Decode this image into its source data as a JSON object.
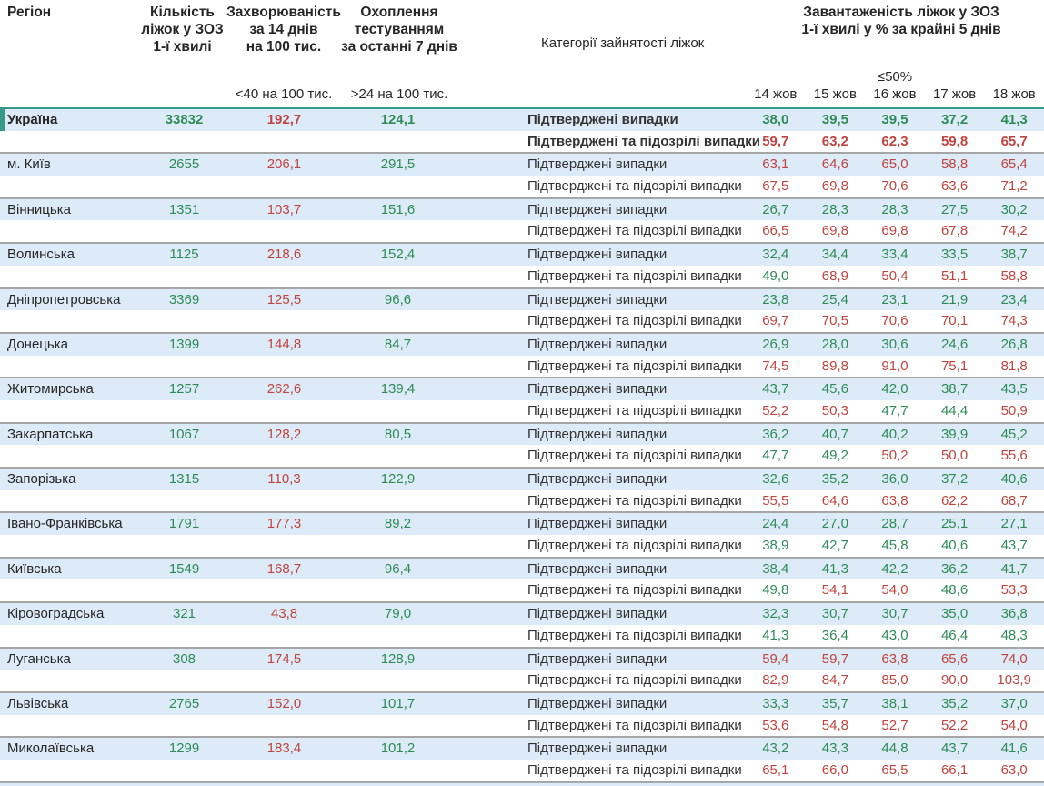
{
  "colors": {
    "green": "#2e8b57",
    "red": "#c0443f",
    "row_blue": "#dcebf7",
    "separator": "#a6a6a6",
    "teal_accent": "#37998a"
  },
  "chart_data": {
    "type": "table",
    "header": {
      "region": "Регіон",
      "beds": [
        "Кількість",
        "ліжок у ЗОЗ",
        "1-ї хвилі"
      ],
      "incidence": [
        "Захворюваність",
        "за 14 днів",
        "на 100 тис."
      ],
      "testing": [
        "Охоплення",
        "тестуванням",
        "за останні 7 днів"
      ],
      "categories": "Категорії зайнятості ліжок",
      "load": [
        "Завантаженість ліжок у ЗОЗ",
        "1-ї хвилі у % за крайні 5 днів"
      ],
      "incidence_threshold": "<40 на 100 тис.",
      "testing_threshold": ">24 на 100 тис.",
      "load_threshold": "≤50%",
      "dates": [
        "14 жов",
        "15 жов",
        "16 жов",
        "17 жов",
        "18 жов"
      ]
    },
    "row_labels": {
      "confirmed": "Підтверджені випадки",
      "confirmed_suspected": "Підтверджені та підозрілі випадки"
    },
    "thresholds": {
      "incidence_green_below": 40,
      "testing_green_above": 24,
      "occupancy_green_below": 50
    },
    "regions": [
      {
        "name": "Україна",
        "beds": "33832",
        "incidence": "192,7",
        "testing": "124,1",
        "confirmed": [
          "38,0",
          "39,5",
          "39,5",
          "37,2",
          "41,3"
        ],
        "confirmed_suspected": [
          "59,7",
          "63,2",
          "62,3",
          "59,8",
          "65,7"
        ]
      },
      {
        "name": "м. Київ",
        "beds": "2655",
        "incidence": "206,1",
        "testing": "291,5",
        "confirmed": [
          "63,1",
          "64,6",
          "65,0",
          "58,8",
          "65,4"
        ],
        "confirmed_suspected": [
          "67,5",
          "69,8",
          "70,6",
          "63,6",
          "71,2"
        ]
      },
      {
        "name": "Вінницька",
        "beds": "1351",
        "incidence": "103,7",
        "testing": "151,6",
        "confirmed": [
          "26,7",
          "28,3",
          "28,3",
          "27,5",
          "30,2"
        ],
        "confirmed_suspected": [
          "66,5",
          "69,8",
          "69,8",
          "67,8",
          "74,2"
        ]
      },
      {
        "name": "Волинська",
        "beds": "1125",
        "incidence": "218,6",
        "testing": "152,4",
        "confirmed": [
          "32,4",
          "34,4",
          "33,4",
          "33,5",
          "38,7"
        ],
        "confirmed_suspected": [
          "49,0",
          "68,9",
          "50,4",
          "51,1",
          "58,8"
        ]
      },
      {
        "name": "Дніпропетровська",
        "beds": "3369",
        "incidence": "125,5",
        "testing": "96,6",
        "confirmed": [
          "23,8",
          "25,4",
          "23,1",
          "21,9",
          "23,4"
        ],
        "confirmed_suspected": [
          "69,7",
          "70,5",
          "70,6",
          "70,1",
          "74,3"
        ]
      },
      {
        "name": "Донецька",
        "beds": "1399",
        "incidence": "144,8",
        "testing": "84,7",
        "confirmed": [
          "26,9",
          "28,0",
          "30,6",
          "24,6",
          "26,8"
        ],
        "confirmed_suspected": [
          "74,5",
          "89,8",
          "91,0",
          "75,1",
          "81,8"
        ]
      },
      {
        "name": "Житомирська",
        "beds": "1257",
        "incidence": "262,6",
        "testing": "139,4",
        "confirmed": [
          "43,7",
          "45,6",
          "42,0",
          "38,7",
          "43,5"
        ],
        "confirmed_suspected": [
          "52,2",
          "50,3",
          "47,7",
          "44,4",
          "50,9"
        ]
      },
      {
        "name": "Закарпатська",
        "beds": "1067",
        "incidence": "128,2",
        "testing": "80,5",
        "confirmed": [
          "36,2",
          "40,7",
          "40,2",
          "39,9",
          "45,2"
        ],
        "confirmed_suspected": [
          "47,7",
          "49,2",
          "50,2",
          "50,0",
          "55,6"
        ]
      },
      {
        "name": "Запорізька",
        "beds": "1315",
        "incidence": "110,3",
        "testing": "122,9",
        "confirmed": [
          "32,6",
          "35,2",
          "36,0",
          "37,2",
          "40,6"
        ],
        "confirmed_suspected": [
          "55,5",
          "64,6",
          "63,8",
          "62,2",
          "68,7"
        ]
      },
      {
        "name": "Івано-Франківська",
        "beds": "1791",
        "incidence": "177,3",
        "testing": "89,2",
        "confirmed": [
          "24,4",
          "27,0",
          "28,7",
          "25,1",
          "27,1"
        ],
        "confirmed_suspected": [
          "38,9",
          "42,7",
          "45,8",
          "40,6",
          "43,7"
        ]
      },
      {
        "name": "Київська",
        "beds": "1549",
        "incidence": "168,7",
        "testing": "96,4",
        "confirmed": [
          "38,4",
          "41,3",
          "42,2",
          "36,2",
          "41,7"
        ],
        "confirmed_suspected": [
          "49,8",
          "54,1",
          "54,0",
          "48,6",
          "53,3"
        ]
      },
      {
        "name": "Кіровоградська",
        "beds": "321",
        "incidence": "43,8",
        "testing": "79,0",
        "confirmed": [
          "32,3",
          "30,7",
          "30,7",
          "35,0",
          "36,8"
        ],
        "confirmed_suspected": [
          "41,3",
          "36,4",
          "43,0",
          "46,4",
          "48,3"
        ]
      },
      {
        "name": "Луганська",
        "beds": "308",
        "incidence": "174,5",
        "testing": "128,9",
        "confirmed": [
          "59,4",
          "59,7",
          "63,8",
          "65,6",
          "74,0"
        ],
        "confirmed_suspected": [
          "82,9",
          "84,7",
          "85,0",
          "90,0",
          "103,9"
        ]
      },
      {
        "name": "Львівська",
        "beds": "2765",
        "incidence": "152,0",
        "testing": "101,7",
        "confirmed": [
          "33,3",
          "35,7",
          "38,1",
          "35,2",
          "37,0"
        ],
        "confirmed_suspected": [
          "53,6",
          "54,8",
          "52,7",
          "52,2",
          "54,0"
        ]
      },
      {
        "name": "Миколаївська",
        "beds": "1299",
        "incidence": "183,4",
        "testing": "101,2",
        "confirmed": [
          "43,2",
          "43,3",
          "44,8",
          "43,7",
          "41,6"
        ],
        "confirmed_suspected": [
          "65,1",
          "66,0",
          "65,5",
          "66,1",
          "63,0"
        ]
      }
    ]
  }
}
